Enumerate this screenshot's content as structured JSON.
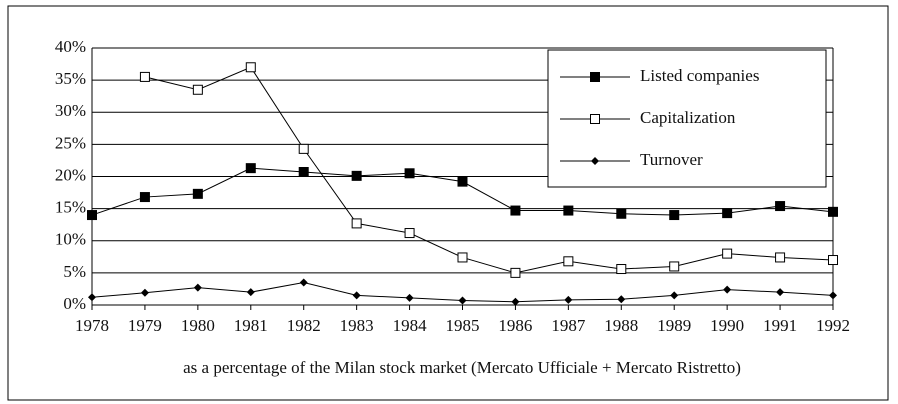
{
  "chart_data": {
    "type": "line",
    "categories": [
      "1978",
      "1979",
      "1980",
      "1981",
      "1982",
      "1983",
      "1984",
      "1985",
      "1986",
      "1987",
      "1988",
      "1989",
      "1990",
      "1991",
      "1992"
    ],
    "x_label": "as a percentage of the Milan stock market (Mercato Ufficiale + Mercato Ristretto)",
    "series": [
      {
        "name": "Listed companies",
        "color": "#000000",
        "marker": "filled-square",
        "values": [
          14,
          16.8,
          17.3,
          21.3,
          20.7,
          20.1,
          20.5,
          19.2,
          14.7,
          14.7,
          14.2,
          14.0,
          14.3,
          15.4,
          14.5
        ]
      },
      {
        "name": "Capitalization",
        "color": "#000000",
        "marker": "open-square",
        "values": [
          null,
          35.5,
          33.5,
          37,
          24.3,
          12.7,
          11.2,
          7.4,
          5,
          6.8,
          5.6,
          6,
          8,
          7.4,
          7
        ]
      },
      {
        "name": "Turnover",
        "color": "#000000",
        "marker": "diamond",
        "values": [
          1.2,
          1.9,
          2.7,
          2,
          3.5,
          1.5,
          1.1,
          0.7,
          0.5,
          0.8,
          0.9,
          1.5,
          2.4,
          2,
          1.5
        ]
      }
    ],
    "ylim": [
      0,
      40
    ],
    "yticks": [
      {
        "value": 0,
        "label": "0%"
      },
      {
        "value": 5,
        "label": "5%"
      },
      {
        "value": 10,
        "label": "10%"
      },
      {
        "value": 15,
        "label": "15%"
      },
      {
        "value": 20,
        "label": "20%"
      },
      {
        "value": 25,
        "label": "25%"
      },
      {
        "value": 30,
        "label": "30%"
      },
      {
        "value": 35,
        "label": "35%"
      },
      {
        "value": 40,
        "label": "40%"
      }
    ],
    "grid": true,
    "legend": "upper right"
  }
}
